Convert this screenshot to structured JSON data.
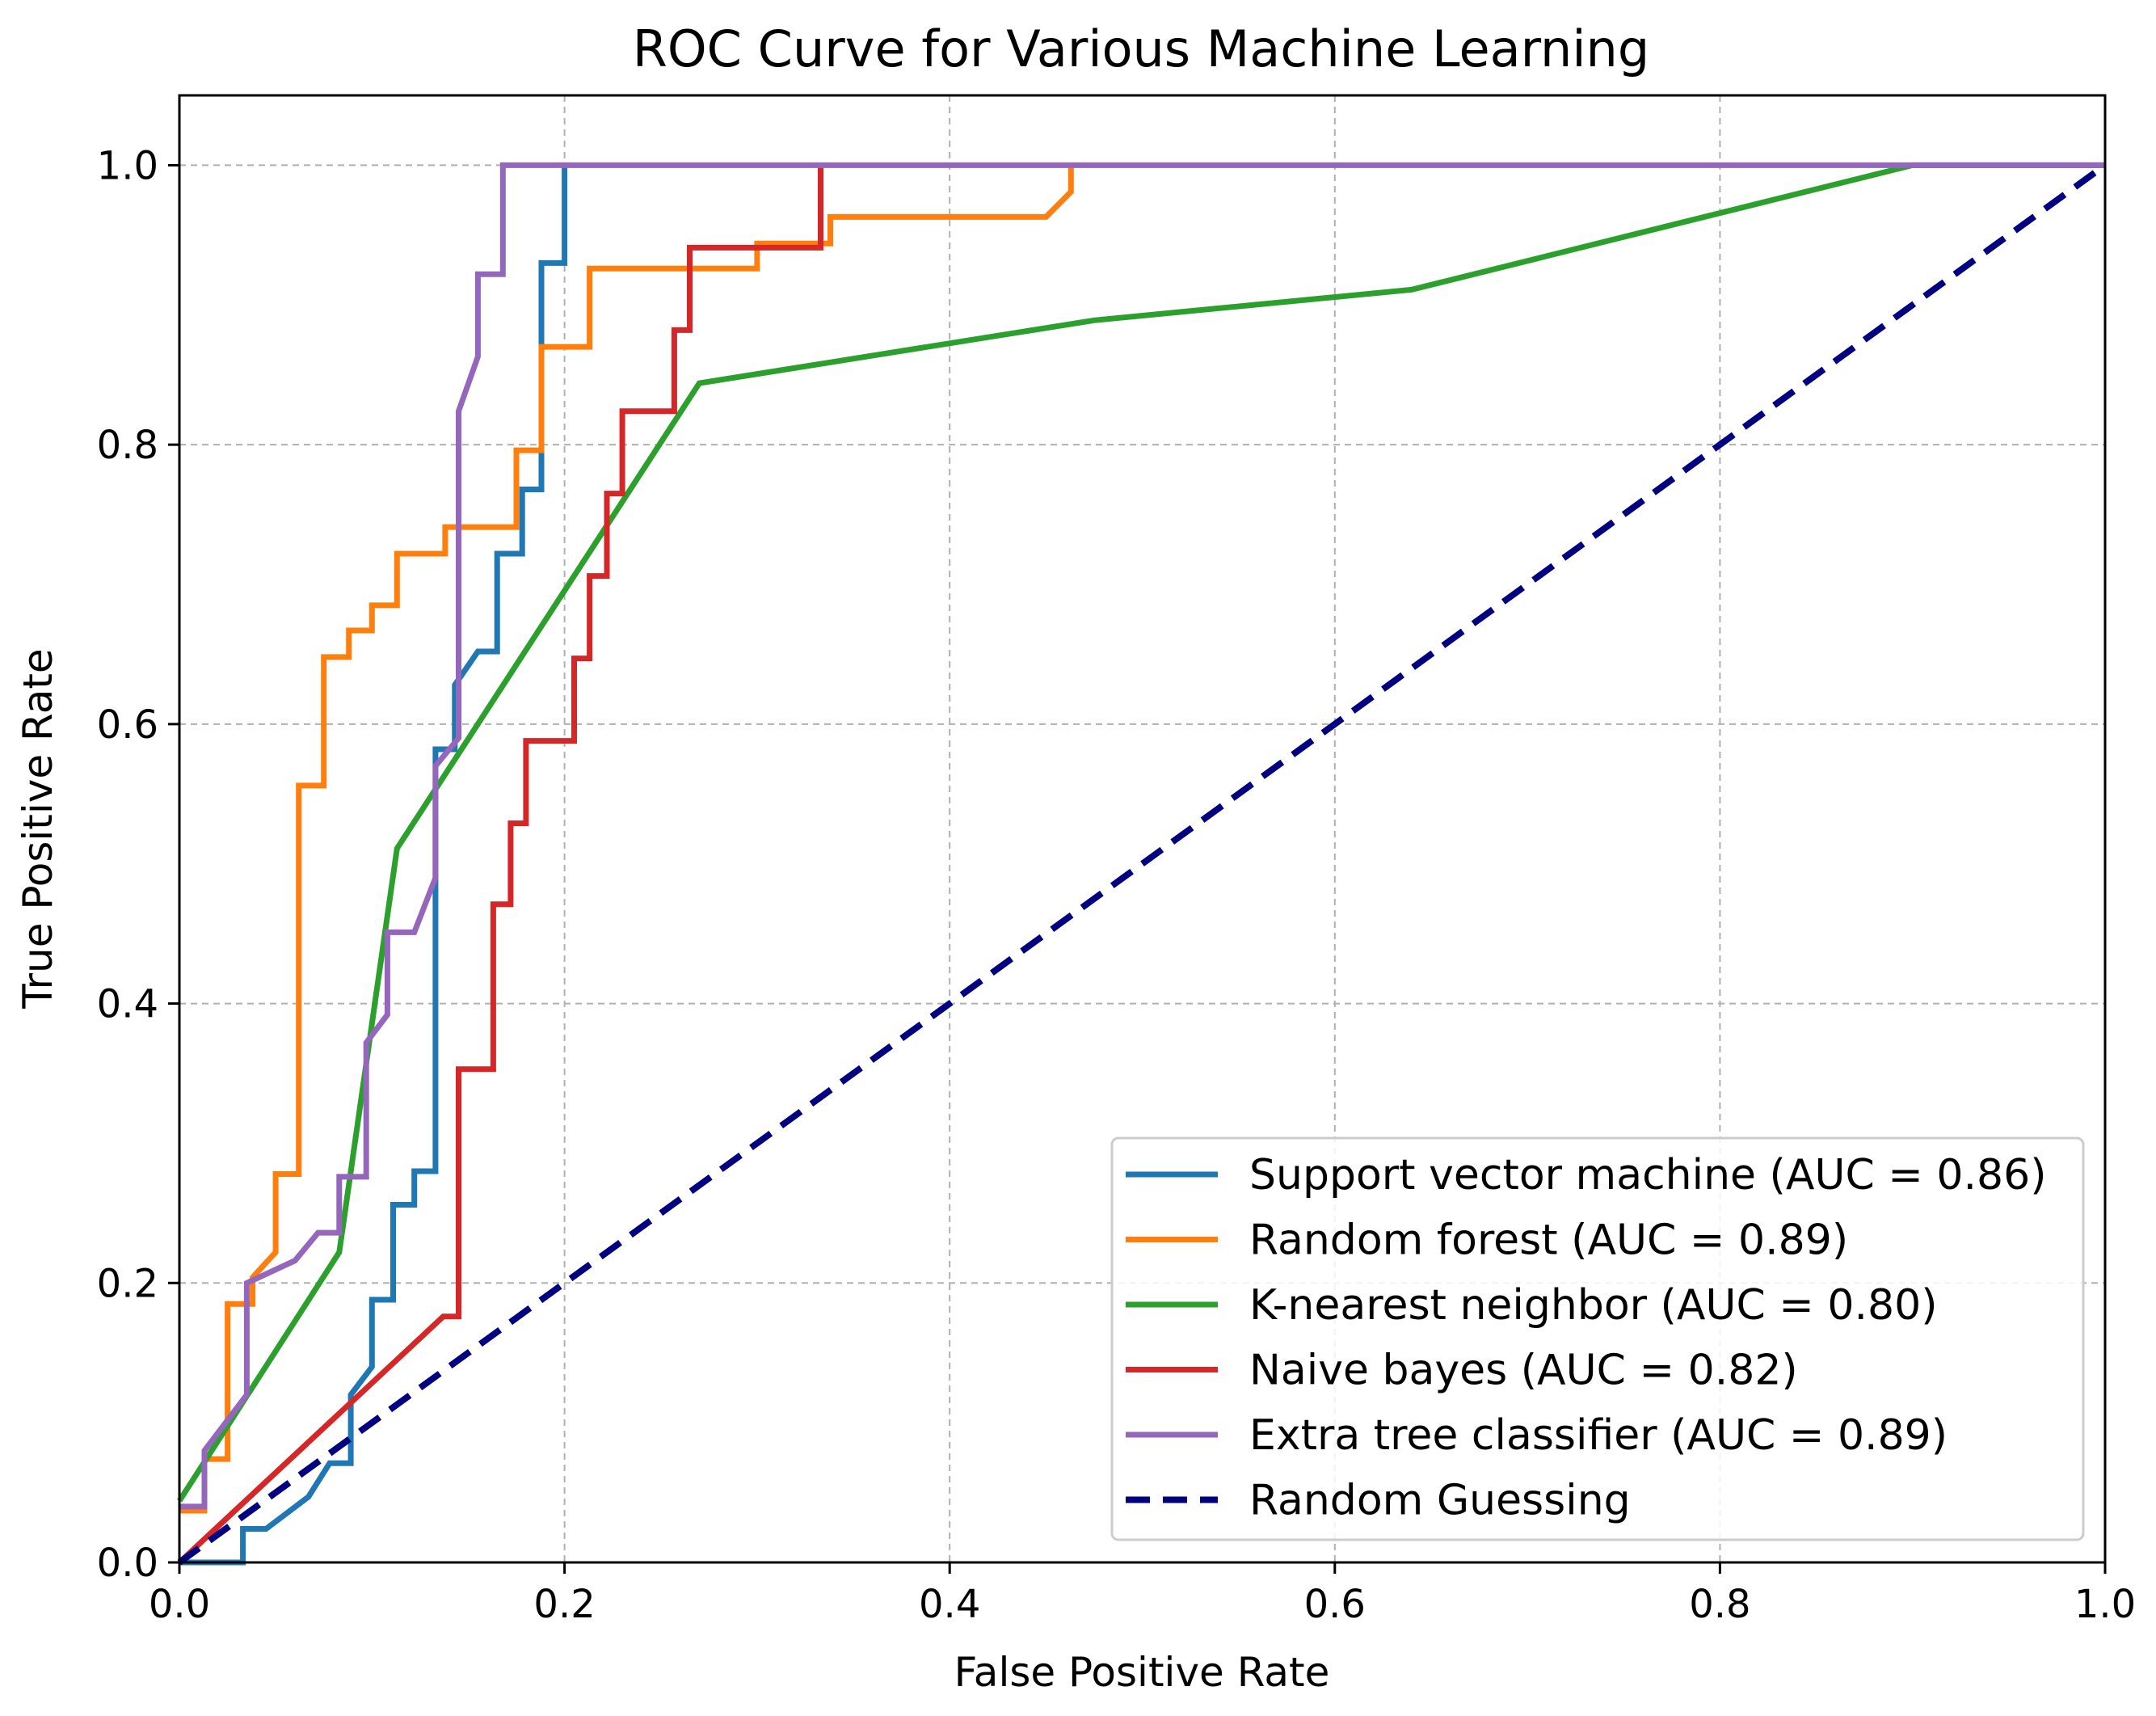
{
  "chart_data": {
    "type": "line",
    "title": "ROC Curve for Various Machine Learning",
    "xlabel": "False Positive Rate",
    "ylabel": "True Positive Rate",
    "xlim": [
      0.0,
      1.0
    ],
    "ylim": [
      0.0,
      1.05
    ],
    "xticks": [
      0.0,
      0.2,
      0.4,
      0.6,
      0.8,
      1.0
    ],
    "yticks": [
      0.0,
      0.2,
      0.4,
      0.6,
      0.8,
      1.0
    ],
    "xtick_labels": [
      "0.0",
      "0.2",
      "0.4",
      "0.6",
      "0.8",
      "1.0"
    ],
    "ytick_labels": [
      "0.0",
      "0.2",
      "0.4",
      "0.6",
      "0.8",
      "1.0"
    ],
    "grid": true,
    "legend_position": "bottom-right",
    "series": [
      {
        "name": "Support vector machine (AUC = 0.86)",
        "color": "#1f77b4",
        "style": "solid",
        "x": [
          0,
          0.033,
          0.033,
          0.045,
          0.067,
          0.078,
          0.089,
          0.089,
          0.1,
          0.1,
          0.111,
          0.111,
          0.122,
          0.122,
          0.133,
          0.133,
          0.143,
          0.143,
          0.155,
          0.165,
          0.165,
          0.178,
          0.178,
          0.188,
          0.188,
          0.2,
          0.2
        ],
        "y": [
          0,
          0,
          0.024,
          0.024,
          0.047,
          0.071,
          0.071,
          0.12,
          0.14,
          0.188,
          0.188,
          0.256,
          0.256,
          0.28,
          0.28,
          0.582,
          0.582,
          0.628,
          0.652,
          0.652,
          0.722,
          0.722,
          0.768,
          0.768,
          0.93,
          0.93,
          1.0
        ]
      },
      {
        "name": "Random forest (AUC = 0.89)",
        "color": "#ff7f0e",
        "style": "solid",
        "x": [
          0,
          0.013,
          0.013,
          0.025,
          0.025,
          0.038,
          0.038,
          0.05,
          0.05,
          0.062,
          0.062,
          0.075,
          0.075,
          0.088,
          0.088,
          0.1,
          0.1,
          0.113,
          0.113,
          0.138,
          0.138,
          0.175,
          0.175,
          0.188,
          0.188,
          0.213,
          0.213,
          0.3,
          0.3,
          0.338,
          0.338,
          0.45,
          0.463,
          0.463
        ],
        "y": [
          0.037,
          0.037,
          0.074,
          0.074,
          0.185,
          0.185,
          0.204,
          0.222,
          0.278,
          0.278,
          0.556,
          0.556,
          0.648,
          0.648,
          0.667,
          0.667,
          0.685,
          0.685,
          0.722,
          0.722,
          0.741,
          0.741,
          0.796,
          0.796,
          0.87,
          0.87,
          0.926,
          0.926,
          0.944,
          0.944,
          0.963,
          0.963,
          0.981,
          1.0
        ]
      },
      {
        "name": "K-nearest neighbor (AUC = 0.80)",
        "color": "#2ca02c",
        "style": "solid",
        "x": [
          0,
          0.083,
          0.113,
          0.27,
          0.475,
          0.64,
          0.9,
          1.0
        ],
        "y": [
          0.044,
          0.222,
          0.511,
          0.844,
          0.889,
          0.911,
          1.0,
          1.0
        ]
      },
      {
        "name": "Naive bayes (AUC = 0.82)",
        "color": "#d62728",
        "style": "solid",
        "x": [
          0,
          0.137,
          0.145,
          0.145,
          0.163,
          0.163,
          0.172,
          0.172,
          0.18,
          0.18,
          0.205,
          0.205,
          0.213,
          0.213,
          0.222,
          0.222,
          0.23,
          0.23,
          0.257,
          0.257,
          0.265,
          0.265,
          0.333,
          0.333
        ],
        "y": [
          0,
          0.176,
          0.176,
          0.353,
          0.353,
          0.471,
          0.471,
          0.529,
          0.529,
          0.588,
          0.588,
          0.647,
          0.647,
          0.706,
          0.706,
          0.765,
          0.765,
          0.824,
          0.824,
          0.882,
          0.882,
          0.941,
          0.941,
          1.0
        ]
      },
      {
        "name": "Extra tree classifier (AUC = 0.89)",
        "color": "#9467bd",
        "style": "solid",
        "x": [
          0,
          0.013,
          0.013,
          0.035,
          0.035,
          0.06,
          0.072,
          0.083,
          0.083,
          0.097,
          0.097,
          0.108,
          0.108,
          0.122,
          0.133,
          0.133,
          0.145,
          0.145,
          0.155,
          0.155,
          0.168,
          0.168,
          1.0
        ],
        "y": [
          0.04,
          0.04,
          0.08,
          0.12,
          0.2,
          0.216,
          0.236,
          0.236,
          0.276,
          0.276,
          0.372,
          0.392,
          0.451,
          0.451,
          0.49,
          0.57,
          0.59,
          0.824,
          0.863,
          0.922,
          0.922,
          1.0,
          1.0
        ]
      },
      {
        "name": "Random Guessing",
        "color": "#000080",
        "style": "dashed",
        "x": [
          0,
          1
        ],
        "y": [
          0,
          1
        ]
      }
    ]
  }
}
